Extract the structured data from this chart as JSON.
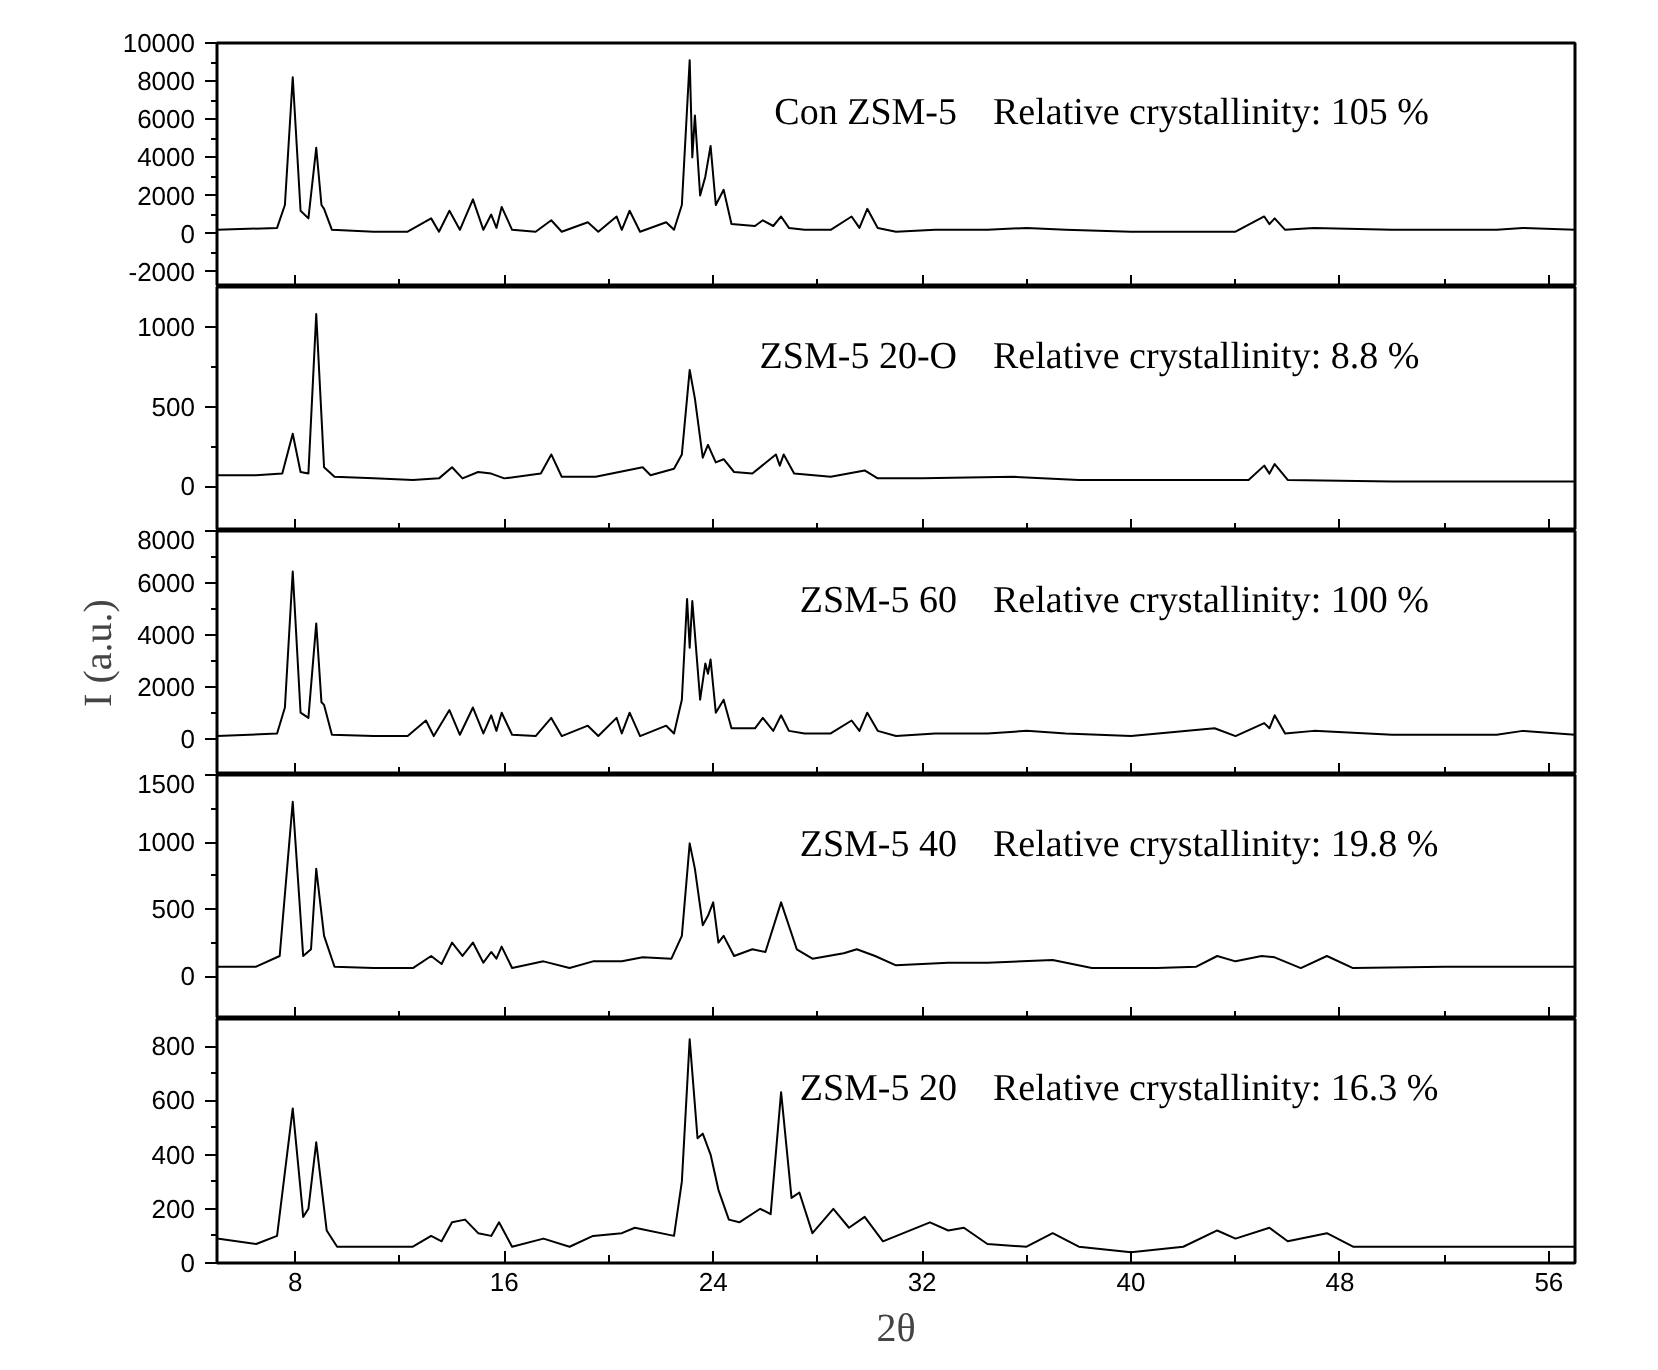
{
  "chart_data": [
    {
      "type": "line",
      "xlim": [
        5,
        57
      ],
      "xticks": [
        8,
        {
          "value": 12,
          "label": null
        },
        16,
        {
          "value": 20,
          "label": null
        },
        24,
        {
          "value": 28,
          "label": null
        },
        32,
        {
          "value": 36,
          "label": null
        },
        40,
        {
          "value": 44,
          "label": null
        },
        48,
        {
          "value": 52,
          "label": null
        },
        56
      ],
      "ylim": [
        -2800,
        10000
      ],
      "yticks": [
        -2000,
        {
          "value": -1000,
          "label": null
        },
        0,
        {
          "value": 1000,
          "label": null
        },
        2000,
        {
          "value": 3000,
          "label": null
        },
        4000,
        {
          "value": 5000,
          "label": null
        },
        6000,
        {
          "value": 7000,
          "label": null
        },
        8000,
        {
          "value": 9000,
          "label": null
        },
        10000
      ],
      "tick_labels": "y",
      "grid": false,
      "annotations": [
        "Relative crystallinity: 105 %"
      ],
      "series": [
        {
          "name": "Con ZSM-5",
          "color": "#000000",
          "x": [
            5,
            7.3,
            7.6,
            7.9,
            8.2,
            8.5,
            8.8,
            9.0,
            9.1,
            9.4,
            11,
            12.3,
            13.2,
            13.5,
            13.9,
            14.3,
            14.8,
            15.2,
            15.5,
            15.7,
            15.9,
            16.3,
            17.2,
            17.8,
            18.2,
            19.2,
            19.6,
            20.3,
            20.5,
            20.8,
            21.2,
            22.2,
            22.5,
            22.8,
            23.1,
            23.2,
            23.3,
            23.5,
            23.7,
            23.9,
            24.1,
            24.4,
            24.7,
            25.6,
            25.9,
            26.3,
            26.6,
            26.9,
            27.5,
            28.5,
            29.3,
            29.6,
            29.9,
            30.3,
            31,
            32.5,
            34.5,
            36,
            37.5,
            40,
            44,
            45.1,
            45.3,
            45.5,
            45.9,
            47,
            50,
            54,
            55,
            57
          ],
          "values": [
            200,
            300,
            1500,
            8200,
            1200,
            800,
            4500,
            1500,
            1300,
            200,
            100,
            100,
            800,
            100,
            1200,
            200,
            1800,
            200,
            1000,
            300,
            1400,
            200,
            100,
            700,
            100,
            600,
            100,
            900,
            200,
            1200,
            100,
            600,
            200,
            1500,
            9100,
            4000,
            6200,
            2000,
            3000,
            4600,
            1500,
            2300,
            500,
            400,
            700,
            400,
            900,
            300,
            200,
            200,
            900,
            300,
            1300,
            300,
            100,
            200,
            200,
            300,
            200,
            100,
            100,
            900,
            500,
            800,
            200,
            300,
            200,
            200,
            300,
            200
          ]
        }
      ]
    },
    {
      "type": "line",
      "xlim": [
        5,
        57
      ],
      "xticks": [
        8,
        {
          "value": 12,
          "label": null
        },
        16,
        {
          "value": 20,
          "label": null
        },
        24,
        {
          "value": 28,
          "label": null
        },
        32,
        {
          "value": 36,
          "label": null
        },
        40,
        {
          "value": 44,
          "label": null
        },
        48,
        {
          "value": 52,
          "label": null
        },
        56
      ],
      "ylim": [
        -280,
        1250
      ],
      "yticks": [
        0,
        {
          "value": 250,
          "label": null
        },
        500,
        {
          "value": 750,
          "label": null
        },
        1000
      ],
      "tick_labels": "y",
      "grid": false,
      "annotations": [
        "Relative crystallinity: 8.8 %"
      ],
      "series": [
        {
          "name": "ZSM-5 20-O",
          "color": "#000000",
          "x": [
            5,
            6.5,
            7.5,
            7.9,
            8.2,
            8.5,
            8.8,
            9.1,
            9.5,
            11,
            12.5,
            13.5,
            14,
            14.4,
            15,
            15.5,
            16,
            17.4,
            17.8,
            18.2,
            19.5,
            21.3,
            21.6,
            22.5,
            22.8,
            23.1,
            23.3,
            23.6,
            23.8,
            24.1,
            24.4,
            24.8,
            25.5,
            26.4,
            26.55,
            26.7,
            27.1,
            28.5,
            29.8,
            30.3,
            32,
            35.5,
            38,
            42,
            44.5,
            45.1,
            45.3,
            45.5,
            46,
            50,
            54,
            57
          ],
          "values": [
            70,
            70,
            80,
            330,
            90,
            80,
            1080,
            120,
            60,
            50,
            40,
            50,
            120,
            50,
            90,
            80,
            50,
            80,
            200,
            60,
            60,
            120,
            70,
            110,
            200,
            730,
            550,
            180,
            260,
            150,
            170,
            90,
            80,
            200,
            130,
            200,
            80,
            60,
            100,
            50,
            50,
            60,
            40,
            40,
            40,
            130,
            80,
            140,
            40,
            30,
            30,
            30
          ]
        }
      ]
    },
    {
      "type": "line",
      "xlim": [
        5,
        57
      ],
      "xticks": [
        8,
        {
          "value": 12,
          "label": null
        },
        16,
        {
          "value": 20,
          "label": null
        },
        24,
        {
          "value": 28,
          "label": null
        },
        32,
        {
          "value": 36,
          "label": null
        },
        40,
        {
          "value": 44,
          "label": null
        },
        48,
        {
          "value": 52,
          "label": null
        },
        56
      ],
      "ylim": [
        -1400,
        8000
      ],
      "yticks": [
        0,
        {
          "value": 1000,
          "label": null
        },
        2000,
        {
          "value": 3000,
          "label": null
        },
        4000,
        {
          "value": 5000,
          "label": null
        },
        6000,
        {
          "value": 7000,
          "label": null
        },
        8000
      ],
      "tick_labels": "y",
      "grid": false,
      "ylabel": "I (a.u.)",
      "annotations": [
        "Relative crystallinity: 100 %"
      ],
      "series": [
        {
          "name": "ZSM-5 60",
          "color": "#000000",
          "x": [
            5,
            7.3,
            7.6,
            7.9,
            8.2,
            8.5,
            8.8,
            9.0,
            9.1,
            9.4,
            11,
            12.3,
            13.0,
            13.3,
            13.9,
            14.3,
            14.8,
            15.2,
            15.5,
            15.7,
            15.9,
            16.3,
            17.2,
            17.8,
            18.2,
            19.2,
            19.6,
            20.3,
            20.5,
            20.8,
            21.2,
            22.2,
            22.5,
            22.8,
            23.0,
            23.1,
            23.2,
            23.5,
            23.7,
            23.8,
            23.9,
            24.1,
            24.4,
            24.7,
            25.6,
            25.9,
            26.3,
            26.6,
            26.9,
            27.5,
            28.5,
            29.3,
            29.6,
            29.9,
            30.3,
            31,
            32.5,
            34.5,
            36,
            37.5,
            40,
            43.2,
            44,
            45.1,
            45.3,
            45.5,
            45.9,
            47,
            50,
            54,
            55,
            57
          ],
          "values": [
            100,
            200,
            1200,
            6440,
            1000,
            800,
            4440,
            1400,
            1300,
            150,
            100,
            100,
            700,
            100,
            1100,
            150,
            1200,
            200,
            900,
            300,
            1000,
            150,
            100,
            800,
            100,
            500,
            100,
            800,
            200,
            1000,
            100,
            500,
            200,
            1500,
            5380,
            3500,
            5300,
            1500,
            2900,
            2500,
            3050,
            1000,
            1500,
            400,
            400,
            800,
            300,
            900,
            300,
            200,
            200,
            700,
            300,
            1000,
            300,
            100,
            200,
            200,
            300,
            200,
            100,
            400,
            100,
            600,
            400,
            900,
            200,
            300,
            150,
            150,
            300,
            150
          ]
        }
      ]
    },
    {
      "type": "line",
      "xlim": [
        5,
        57
      ],
      "xticks": [
        8,
        {
          "value": 12,
          "label": null
        },
        16,
        {
          "value": 20,
          "label": null
        },
        24,
        {
          "value": 28,
          "label": null
        },
        32,
        {
          "value": 36,
          "label": null
        },
        40,
        {
          "value": 44,
          "label": null
        },
        48,
        {
          "value": 52,
          "label": null
        },
        56
      ],
      "ylim": [
        -320,
        1500
      ],
      "yticks": [
        0,
        {
          "value": 250,
          "label": null
        },
        500,
        {
          "value": 750,
          "label": null
        },
        1000,
        {
          "value": 1250,
          "label": null
        },
        1500
      ],
      "tick_labels": "y",
      "grid": false,
      "annotations": [
        "Relative crystallinity: 19.8 %"
      ],
      "series": [
        {
          "name": "ZSM-5 40",
          "color": "#000000",
          "x": [
            5,
            6.5,
            7.4,
            7.9,
            8.3,
            8.6,
            8.8,
            9.1,
            9.5,
            11,
            12.5,
            13.2,
            13.6,
            14.0,
            14.4,
            14.8,
            15.2,
            15.5,
            15.7,
            15.9,
            16.3,
            17.5,
            18.5,
            19.4,
            20.5,
            21.3,
            22.4,
            22.8,
            23.1,
            23.3,
            23.6,
            23.8,
            24.0,
            24.2,
            24.4,
            24.8,
            25.5,
            26.0,
            26.6,
            27.2,
            27.8,
            29.0,
            29.5,
            30.2,
            31.0,
            33.0,
            34.5,
            37,
            38.5,
            41,
            42.5,
            43.3,
            44.0,
            45.0,
            45.5,
            46.5,
            47.5,
            48.5,
            52,
            57
          ],
          "values": [
            70,
            70,
            150,
            1300,
            150,
            200,
            800,
            300,
            70,
            60,
            60,
            150,
            90,
            250,
            150,
            250,
            100,
            180,
            130,
            220,
            60,
            110,
            60,
            110,
            110,
            140,
            130,
            300,
            990,
            800,
            380,
            450,
            550,
            250,
            300,
            150,
            200,
            180,
            550,
            200,
            130,
            170,
            200,
            150,
            80,
            100,
            100,
            120,
            60,
            60,
            70,
            150,
            110,
            150,
            140,
            60,
            150,
            60,
            70,
            70
          ]
        }
      ]
    },
    {
      "type": "line",
      "xlim": [
        5,
        57
      ],
      "xticks": [
        8,
        {
          "value": 12,
          "label": null
        },
        16,
        {
          "value": 20,
          "label": null
        },
        24,
        {
          "value": 28,
          "label": null
        },
        32,
        {
          "value": 36,
          "label": null
        },
        40,
        {
          "value": 44,
          "label": null
        },
        48,
        {
          "value": 52,
          "label": null
        },
        56
      ],
      "ylim": [
        0,
        900
      ],
      "yticks": [
        0,
        {
          "value": 100,
          "label": null
        },
        200,
        {
          "value": 300,
          "label": null
        },
        400,
        {
          "value": 500,
          "label": null
        },
        600,
        {
          "value": 700,
          "label": null
        },
        800
      ],
      "grid": false,
      "xlabel": "2θ",
      "annotations": [
        "Relative crystallinity: 16.3 %"
      ],
      "series": [
        {
          "name": "ZSM-5 20",
          "color": "#000000",
          "x": [
            5,
            6.5,
            7.3,
            7.9,
            8.3,
            8.5,
            8.8,
            9.2,
            9.6,
            11,
            12.5,
            13.2,
            13.6,
            14.0,
            14.5,
            15.0,
            15.5,
            15.8,
            16.3,
            17.5,
            18.5,
            19.4,
            20.5,
            21.0,
            22.5,
            22.8,
            23.1,
            23.4,
            23.6,
            23.9,
            24.2,
            24.6,
            25.0,
            25.8,
            26.2,
            26.6,
            27.0,
            27.3,
            27.8,
            28.6,
            29.2,
            29.8,
            30.5,
            32.3,
            33.0,
            33.6,
            34.5,
            36,
            37,
            38,
            40,
            42,
            43.3,
            44,
            45.3,
            46,
            47.5,
            48.5,
            52,
            57
          ],
          "values": [
            90,
            70,
            100,
            570,
            170,
            200,
            445,
            120,
            60,
            60,
            60,
            100,
            80,
            150,
            160,
            110,
            100,
            150,
            60,
            90,
            60,
            100,
            110,
            130,
            100,
            300,
            825,
            460,
            477,
            400,
            270,
            160,
            150,
            200,
            180,
            630,
            240,
            260,
            110,
            200,
            130,
            170,
            80,
            150,
            120,
            130,
            70,
            60,
            110,
            60,
            40,
            60,
            120,
            90,
            130,
            80,
            110,
            60,
            60,
            60
          ]
        }
      ]
    }
  ]
}
